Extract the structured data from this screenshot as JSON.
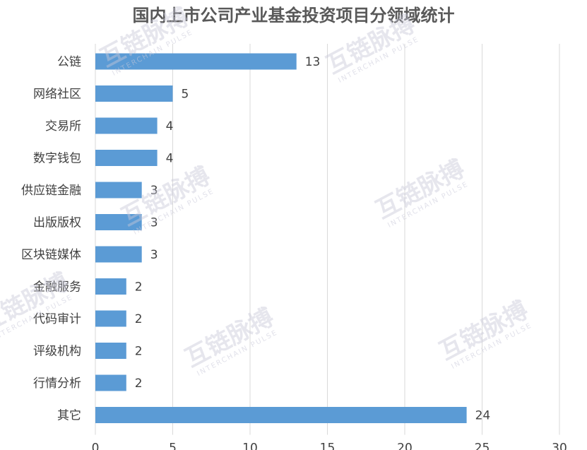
{
  "chart_data": {
    "type": "bar",
    "orientation": "horizontal",
    "title": "国内上市公司产业基金投资项目分领域统计",
    "categories": [
      "公链",
      "网络社区",
      "交易所",
      "数字钱包",
      "供应链金融",
      "出版版权",
      "区块链媒体",
      "金融服务",
      "代码审计",
      "评级机构",
      "行情分析",
      "其它"
    ],
    "values": [
      13,
      5,
      4,
      4,
      3,
      3,
      3,
      2,
      2,
      2,
      2,
      24
    ],
    "xlim": [
      0,
      30
    ],
    "xticks": [
      0,
      5,
      10,
      15,
      20,
      25,
      30
    ],
    "grid": true,
    "bar_color": "#5b9bd5"
  },
  "watermark": {
    "brand": "互链脉搏",
    "sub": "INTERCHAIN PULSE"
  }
}
